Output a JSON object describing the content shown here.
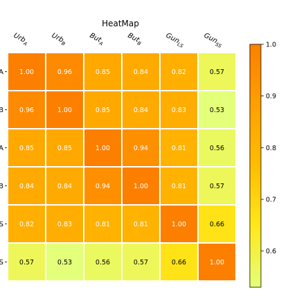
{
  "chart_data": {
    "type": "heatmap",
    "title": "HeatMap",
    "col_labels": [
      "Urb_A",
      "Urb_B",
      "But_A",
      "But_B",
      "Gun_LS",
      "Gun_SS"
    ],
    "row_labels": [
      "A",
      "B",
      "A",
      "B",
      "S",
      "S"
    ],
    "values": [
      [
        1.0,
        0.96,
        0.85,
        0.84,
        0.82,
        0.57
      ],
      [
        0.96,
        1.0,
        0.85,
        0.84,
        0.83,
        0.53
      ],
      [
        0.85,
        0.85,
        1.0,
        0.94,
        0.81,
        0.56
      ],
      [
        0.84,
        0.84,
        0.94,
        1.0,
        0.81,
        0.57
      ],
      [
        0.82,
        0.83,
        0.81,
        0.81,
        1.0,
        0.66
      ],
      [
        0.57,
        0.53,
        0.56,
        0.57,
        0.66,
        1.0
      ]
    ],
    "colorbar": {
      "min": 0.53,
      "max": 1.0,
      "ticks": [
        "1.0",
        "0.9",
        "0.8",
        "0.7",
        "0.6"
      ],
      "colormap": "Wistia",
      "colors": [
        "#e4ff7a",
        "#ffe81a",
        "#ffbd00",
        "#ffa000",
        "#fc7f00"
      ]
    }
  }
}
